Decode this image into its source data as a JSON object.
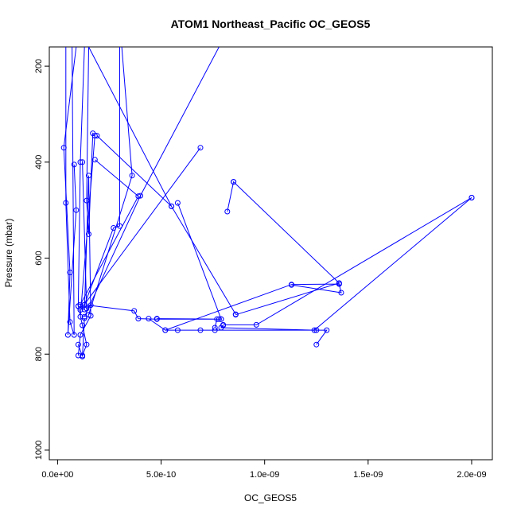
{
  "chart_data": {
    "type": "line",
    "title": "ATOM1 Northeast_Pacific OC_GEOS5",
    "xlabel": "OC_GEOS5",
    "ylabel": "Pressure (mbar)",
    "xlim": [
      -4e-11,
      2.1e-09
    ],
    "ylim": [
      1020,
      160
    ],
    "y_reversed": true,
    "grid": false,
    "legend": "none",
    "color": "#0000ff",
    "x_ticks": [
      0,
      5e-10,
      1e-09,
      1.5e-09,
      2e-09
    ],
    "x_tick_labels": [
      "0.0e+00",
      "5.0e-10",
      "1.0e-09",
      "1.5e-09",
      "2.0e-09"
    ],
    "y_ticks": [
      200,
      400,
      600,
      800,
      1000
    ],
    "y_tick_labels": [
      "200",
      "400",
      "600",
      "800",
      "1000"
    ],
    "series": [
      {
        "x": [
          4e-11,
          4e-11,
          6e-11,
          8e-11,
          7e-11
        ],
        "y": [
          160,
          485,
          733,
          760,
          160
        ]
      },
      {
        "x": [
          9e-11,
          3e-11,
          6e-11,
          5e-11,
          9e-11,
          8e-11
        ],
        "y": [
          160,
          370,
          630,
          760,
          500,
          405
        ]
      },
      {
        "x": [
          1.3e-10,
          1.1e-10,
          1e-10,
          1.2e-10,
          1.4e-10,
          1.2e-10
        ],
        "y": [
          160,
          400,
          700,
          740,
          780,
          803
        ]
      },
      {
        "x": [
          1.5e-10,
          1.4e-10,
          1.5e-10,
          1.7e-10,
          1.8e-10,
          1.1e-10
        ],
        "y": [
          160,
          480,
          550,
          340,
          345,
          722
        ]
      },
      {
        "x": [
          1e-10,
          1.1e-10,
          1.6e-10,
          1.5e-10,
          1.3e-10,
          1e-10
        ],
        "y": [
          803,
          760,
          720,
          428,
          707,
          700
        ]
      },
      {
        "x": [
          3e-10,
          3e-10,
          2.7e-10,
          1.3e-10
        ],
        "y": [
          160,
          533,
          537,
          697
        ]
      },
      {
        "x": [
          3.1e-10,
          3.6e-10,
          1.5e-10
        ],
        "y": [
          160,
          428,
          718
        ]
      },
      {
        "x": [
          1.8e-10,
          3.9e-10,
          1.1e-10
        ],
        "y": [
          395,
          471,
          697
        ]
      },
      {
        "x": [
          7.8e-10,
          4e-10,
          1.3e-10
        ],
        "y": [
          160,
          470,
          722
        ]
      },
      {
        "x": [
          6.9e-10,
          1.1e-10
        ],
        "y": [
          370,
          708
        ]
      },
      {
        "x": [
          1.5e-10,
          5.5e-10
        ],
        "y": [
          160,
          492
        ]
      },
      {
        "x": [
          1.9e-10,
          5.5e-10,
          8.6e-10
        ],
        "y": [
          345,
          492,
          717
        ]
      },
      {
        "x": [
          5.8e-10,
          7.9e-10
        ],
        "y": [
          485,
          727
        ]
      },
      {
        "x": [
          1.3e-10,
          3.7e-10,
          3.9e-10,
          4.8e-10,
          7.9e-10,
          4.8e-10,
          7.8e-10,
          7.7e-10,
          7.6e-10
        ],
        "y": [
          697,
          710,
          726,
          727,
          727,
          726,
          727,
          727,
          745
        ]
      },
      {
        "x": [
          4.4e-10,
          5.2e-10,
          5.8e-10,
          6.9e-10,
          7.6e-10,
          1.25e-09,
          1.3e-09,
          1.25e-09
        ],
        "y": [
          726,
          750,
          750,
          750,
          750,
          750,
          750,
          780
        ]
      },
      {
        "x": [
          5.2e-10,
          1.13e-09,
          1.36e-09,
          1.37e-09,
          1.13e-09
        ],
        "y": [
          750,
          655,
          654,
          672,
          656
        ]
      },
      {
        "x": [
          8.5e-10,
          8.2e-10,
          8.5e-10,
          1.36e-09,
          8.6e-10
        ],
        "y": [
          441,
          503,
          441,
          652,
          718
        ]
      },
      {
        "x": [
          2e-09,
          1.24e-09,
          7.9e-10,
          8e-10
        ],
        "y": [
          474,
          750,
          745,
          740
        ]
      },
      {
        "x": [
          8e-10,
          9.6e-10,
          2e-09
        ],
        "y": [
          739,
          739,
          474
        ]
      },
      {
        "x": [
          1e-10,
          1.2e-10,
          1.3e-10
        ],
        "y": [
          780,
          805,
          725
        ]
      },
      {
        "x": [
          1.2e-10,
          1.4e-10,
          1.6e-10
        ],
        "y": [
          400,
          705,
          698
        ]
      }
    ]
  }
}
